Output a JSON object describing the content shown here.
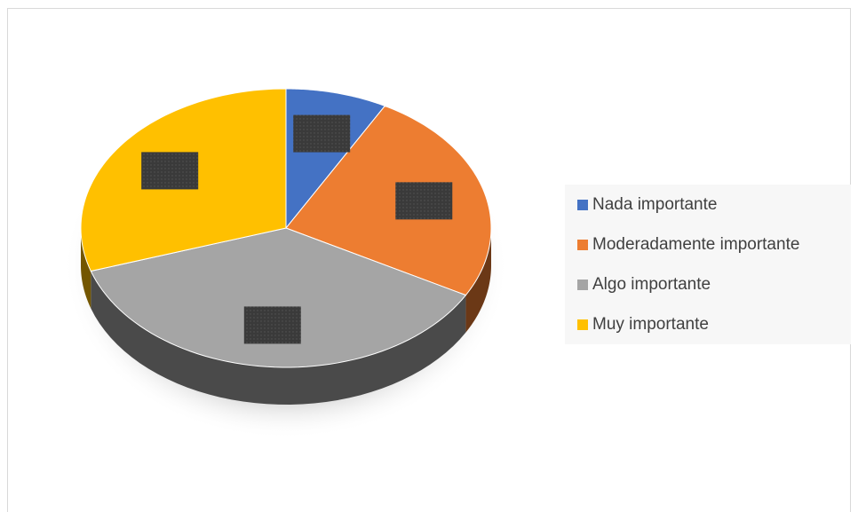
{
  "chart_data": {
    "type": "pie",
    "categories": [
      "Nada importante",
      "Moderadamente importante",
      "Algo importante",
      "Muy importante"
    ],
    "values": [
      8,
      25,
      37,
      30
    ],
    "colors": [
      "#4472c4",
      "#ed7d31",
      "#a5a5a5",
      "#ffc000"
    ],
    "legend": "right"
  }
}
